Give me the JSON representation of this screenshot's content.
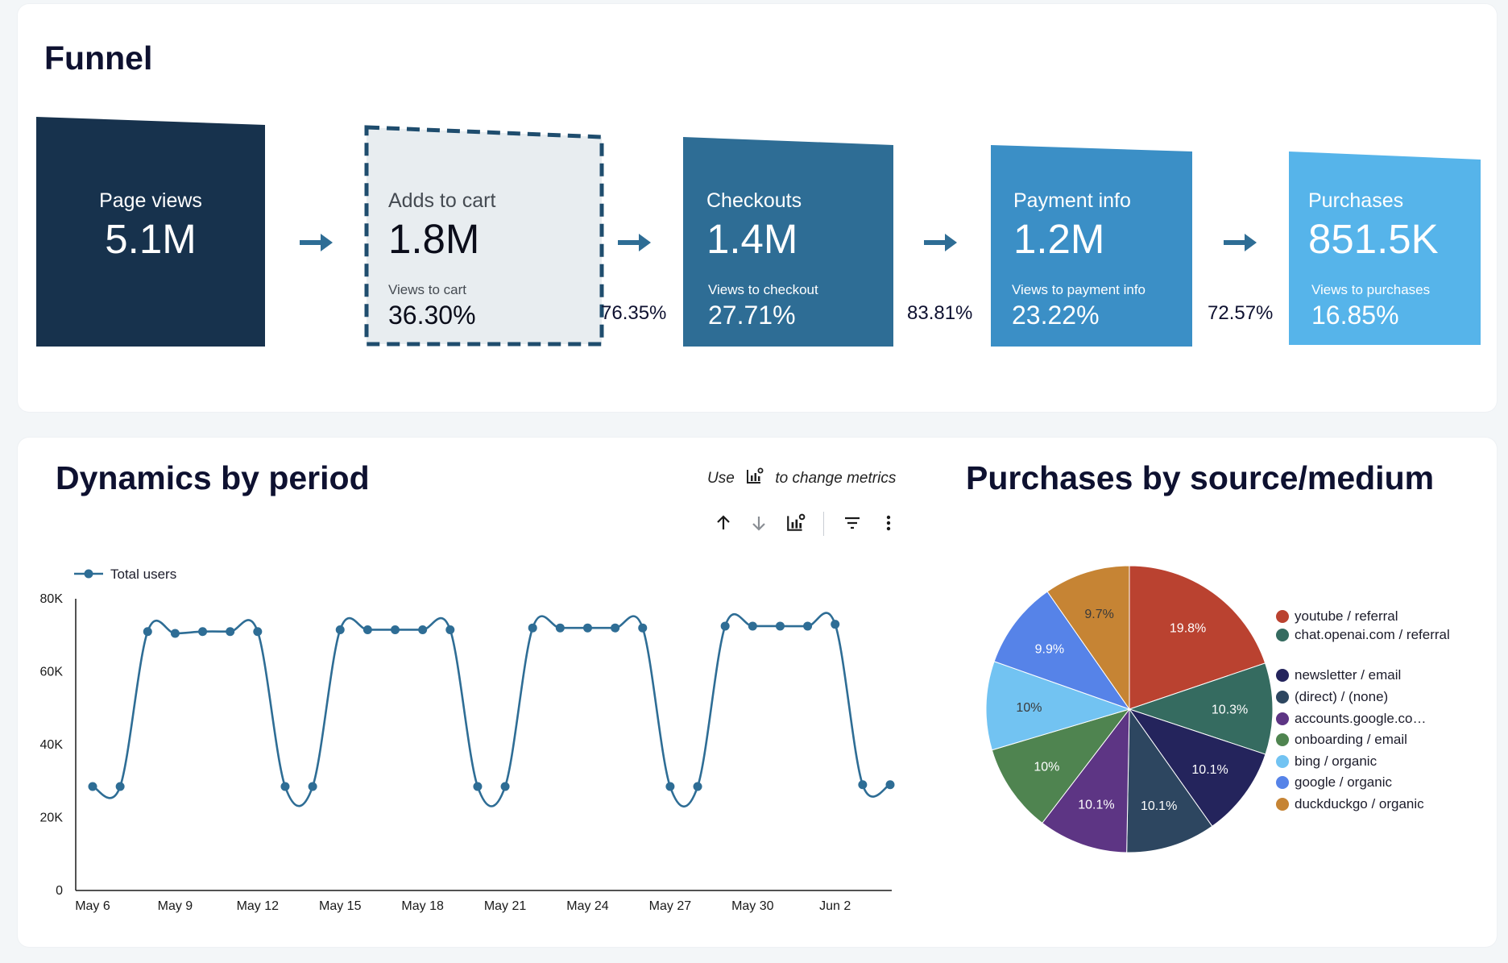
{
  "funnel": {
    "title": "Funnel",
    "stages": [
      {
        "label": "Page views",
        "value": "5.1M",
        "sublabel": "",
        "percent": ""
      },
      {
        "label": "Adds to cart",
        "value": "1.8M",
        "sublabel": "Views to cart",
        "percent": "36.30%"
      },
      {
        "label": "Checkouts",
        "value": "1.4M",
        "sublabel": "Views to checkout",
        "percent": "27.71%"
      },
      {
        "label": "Payment info",
        "value": "1.2M",
        "sublabel": "Views to payment info",
        "percent": "23.22%"
      },
      {
        "label": "Purchases",
        "value": "851.5K",
        "sublabel": "Views to purchases",
        "percent": "16.85%"
      }
    ],
    "step_conversions": [
      "76.35%",
      "83.81%",
      "72.57%"
    ],
    "colors": [
      "#17324d",
      "#e8edf0",
      "#2e6d95",
      "#3b8fc6",
      "#56b4ea"
    ]
  },
  "dynamics": {
    "title": "Dynamics by period",
    "hint_prefix": "Use",
    "hint_suffix": "to change metrics",
    "toolbar": {
      "sort_ascending": "sort-ascending-icon",
      "sort_descending": "sort-descending-icon",
      "change_metrics": "chart-metrics-icon",
      "filter": "filter-icon",
      "more": "more-options-icon"
    }
  },
  "pie_section": {
    "title": "Purchases by source/medium"
  },
  "chart_data": [
    {
      "type": "line",
      "title": "Dynamics by period",
      "series": [
        {
          "name": "Total users",
          "color": "#2e6d95",
          "values": [
            28500,
            28500,
            71000,
            70500,
            71000,
            71000,
            71000,
            28500,
            28500,
            71500,
            71500,
            71500,
            71500,
            71500,
            28500,
            28500,
            72000,
            72000,
            72000,
            72000,
            72000,
            28500,
            28500,
            72500,
            72500,
            72500,
            72500,
            73000,
            29000,
            29000
          ]
        }
      ],
      "x": [
        "May 6",
        "May 7",
        "May 8",
        "May 9",
        "May 10",
        "May 11",
        "May 12",
        "May 13",
        "May 14",
        "May 15",
        "May 16",
        "May 17",
        "May 18",
        "May 19",
        "May 20",
        "May 21",
        "May 22",
        "May 23",
        "May 24",
        "May 25",
        "May 26",
        "May 27",
        "May 28",
        "May 29",
        "May 30",
        "May 31",
        "Jun 1",
        "Jun 2",
        "Jun 3",
        "Jun 4"
      ],
      "xticks": [
        "May 6",
        "May 9",
        "May 12",
        "May 15",
        "May 18",
        "May 21",
        "May 24",
        "May 27",
        "May 30",
        "Jun 2"
      ],
      "yticks": [
        "0",
        "20K",
        "40K",
        "60K",
        "80K"
      ],
      "ylim": [
        0,
        80000
      ],
      "legend": "top-left",
      "grid": false
    },
    {
      "type": "pie",
      "title": "Purchases by source/medium",
      "slices": [
        {
          "label": "youtube / referral",
          "value": 19.8,
          "display": "19.8%",
          "color": "#ba4230"
        },
        {
          "label": "chat.openai.com / referral",
          "value": 10.3,
          "display": "10.3%",
          "color": "#356b60"
        },
        {
          "label": "newsletter / email",
          "value": 10.1,
          "display": "10.1%",
          "color": "#24245c"
        },
        {
          "label": "(direct) / (none)",
          "value": 10.1,
          "display": "10.1%",
          "color": "#2d4660"
        },
        {
          "label": "accounts.google.co…",
          "value": 10.1,
          "display": "10.1%",
          "color": "#5d3584"
        },
        {
          "label": "onboarding / email",
          "value": 10.0,
          "display": "10%",
          "color": "#4f8450"
        },
        {
          "label": "bing / organic",
          "value": 10.0,
          "display": "10%",
          "color": "#72c3f2"
        },
        {
          "label": "google / organic",
          "value": 9.9,
          "display": "9.9%",
          "color": "#5683e8"
        },
        {
          "label": "duckduckgo / organic",
          "value": 9.7,
          "display": "9.7%",
          "color": "#c68434"
        }
      ],
      "legend": "right"
    }
  ]
}
